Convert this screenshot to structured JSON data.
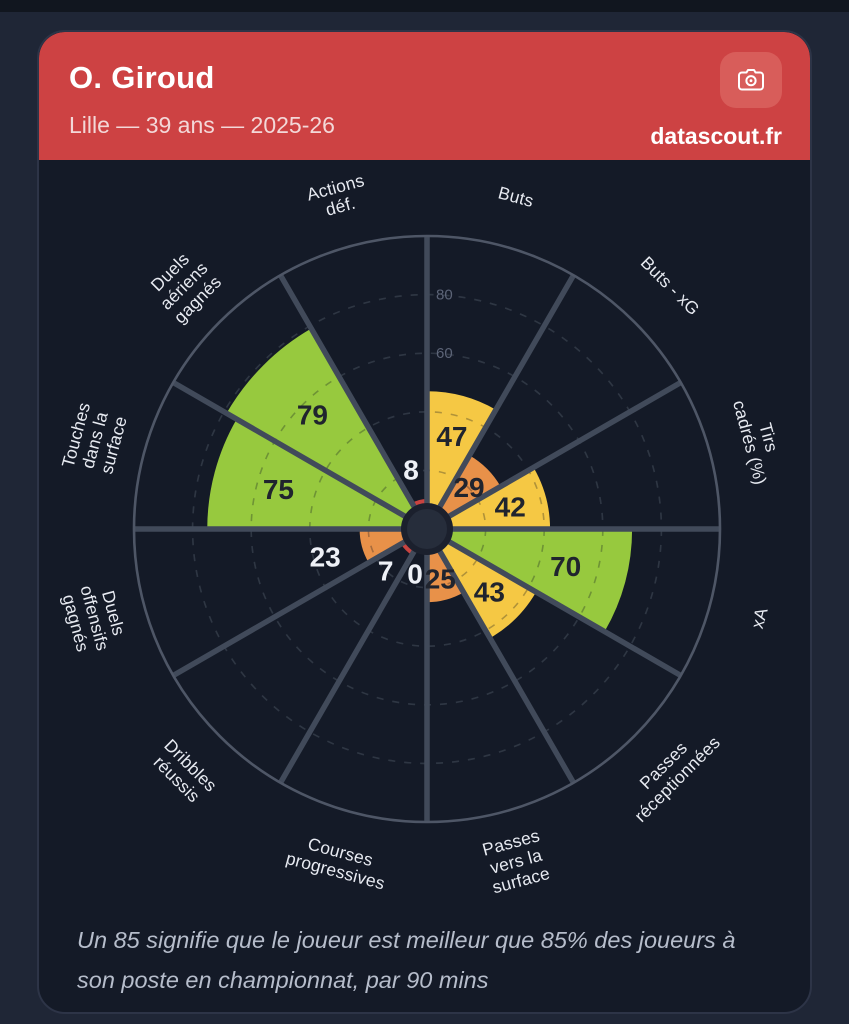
{
  "header": {
    "title": "O. Giroud",
    "subtitle": "Lille — 39 ans — 2025-26",
    "brand": "datascout.fr",
    "camera_icon": "camera-icon"
  },
  "footer": {
    "note": "Un 85 signifie que le joueur est meilleur que 85% des joueurs à son poste en championnat, par 90 mins"
  },
  "colors": {
    "page_bg": "#1f2636",
    "top_strip": "#11161f",
    "card_bg": "#141a27",
    "card_border": "#2d3447",
    "header_bg": "#cd4243",
    "header_subtitle": "#f3d8d8",
    "camera_btn_bg": "#d85d5a",
    "green": "#97c93e",
    "yellow": "#f5c844",
    "orange": "#e89149",
    "red": "#c84340",
    "grid_line": "#3c4452",
    "spoke": "#414a5a",
    "outer_ring": "#4e5666",
    "hub_fill": "#262d3b",
    "hub_ring": "#1b202d",
    "tick_text": "#5c6477",
    "category_text": "#e7eaf1",
    "value_dark": "#20242e",
    "value_light": "#eef1f7",
    "footer_text": "#b6bdcb"
  },
  "chart_data": {
    "type": "pie",
    "subtype": "polar-pizza-percentiles",
    "rlim": [
      0,
      100
    ],
    "grid_step": 20,
    "visible_tick_labels": [
      80,
      60
    ],
    "categories": [
      {
        "label": "Buts",
        "lines": [
          "Buts"
        ]
      },
      {
        "label": "Buts - xG",
        "lines": [
          "Buts - xG"
        ]
      },
      {
        "label": "Tirs cadrés (%)",
        "lines": [
          "Tirs",
          "cadrés (%)"
        ]
      },
      {
        "label": "xA",
        "lines": [
          "xA"
        ]
      },
      {
        "label": "Passes réceptionnées",
        "lines": [
          "Passes",
          "réceptionnées"
        ]
      },
      {
        "label": "Passes vers la surface",
        "lines": [
          "Passes",
          "vers la",
          "surface"
        ]
      },
      {
        "label": "Courses progressives",
        "lines": [
          "Courses",
          "progressives"
        ]
      },
      {
        "label": "Dribbles réussis",
        "lines": [
          "Dribbles",
          "réussis"
        ]
      },
      {
        "label": "Duels offensifs gagnés",
        "lines": [
          "Duels",
          "offensifs",
          "gagnés"
        ]
      },
      {
        "label": "Touches dans la surface",
        "lines": [
          "Touches",
          "dans la",
          "surface"
        ]
      },
      {
        "label": "Duels aériens gagnés",
        "lines": [
          "Duels",
          "aériens",
          "gagnés"
        ]
      },
      {
        "label": "Actions déf.",
        "lines": [
          "Actions",
          "déf."
        ]
      }
    ],
    "values": [
      47,
      29,
      42,
      70,
      43,
      25,
      0,
      7,
      23,
      75,
      79,
      8
    ],
    "color_scale": {
      "red_below": 20,
      "orange_below": 40,
      "yellow_below": 65,
      "green_from": 65
    }
  }
}
